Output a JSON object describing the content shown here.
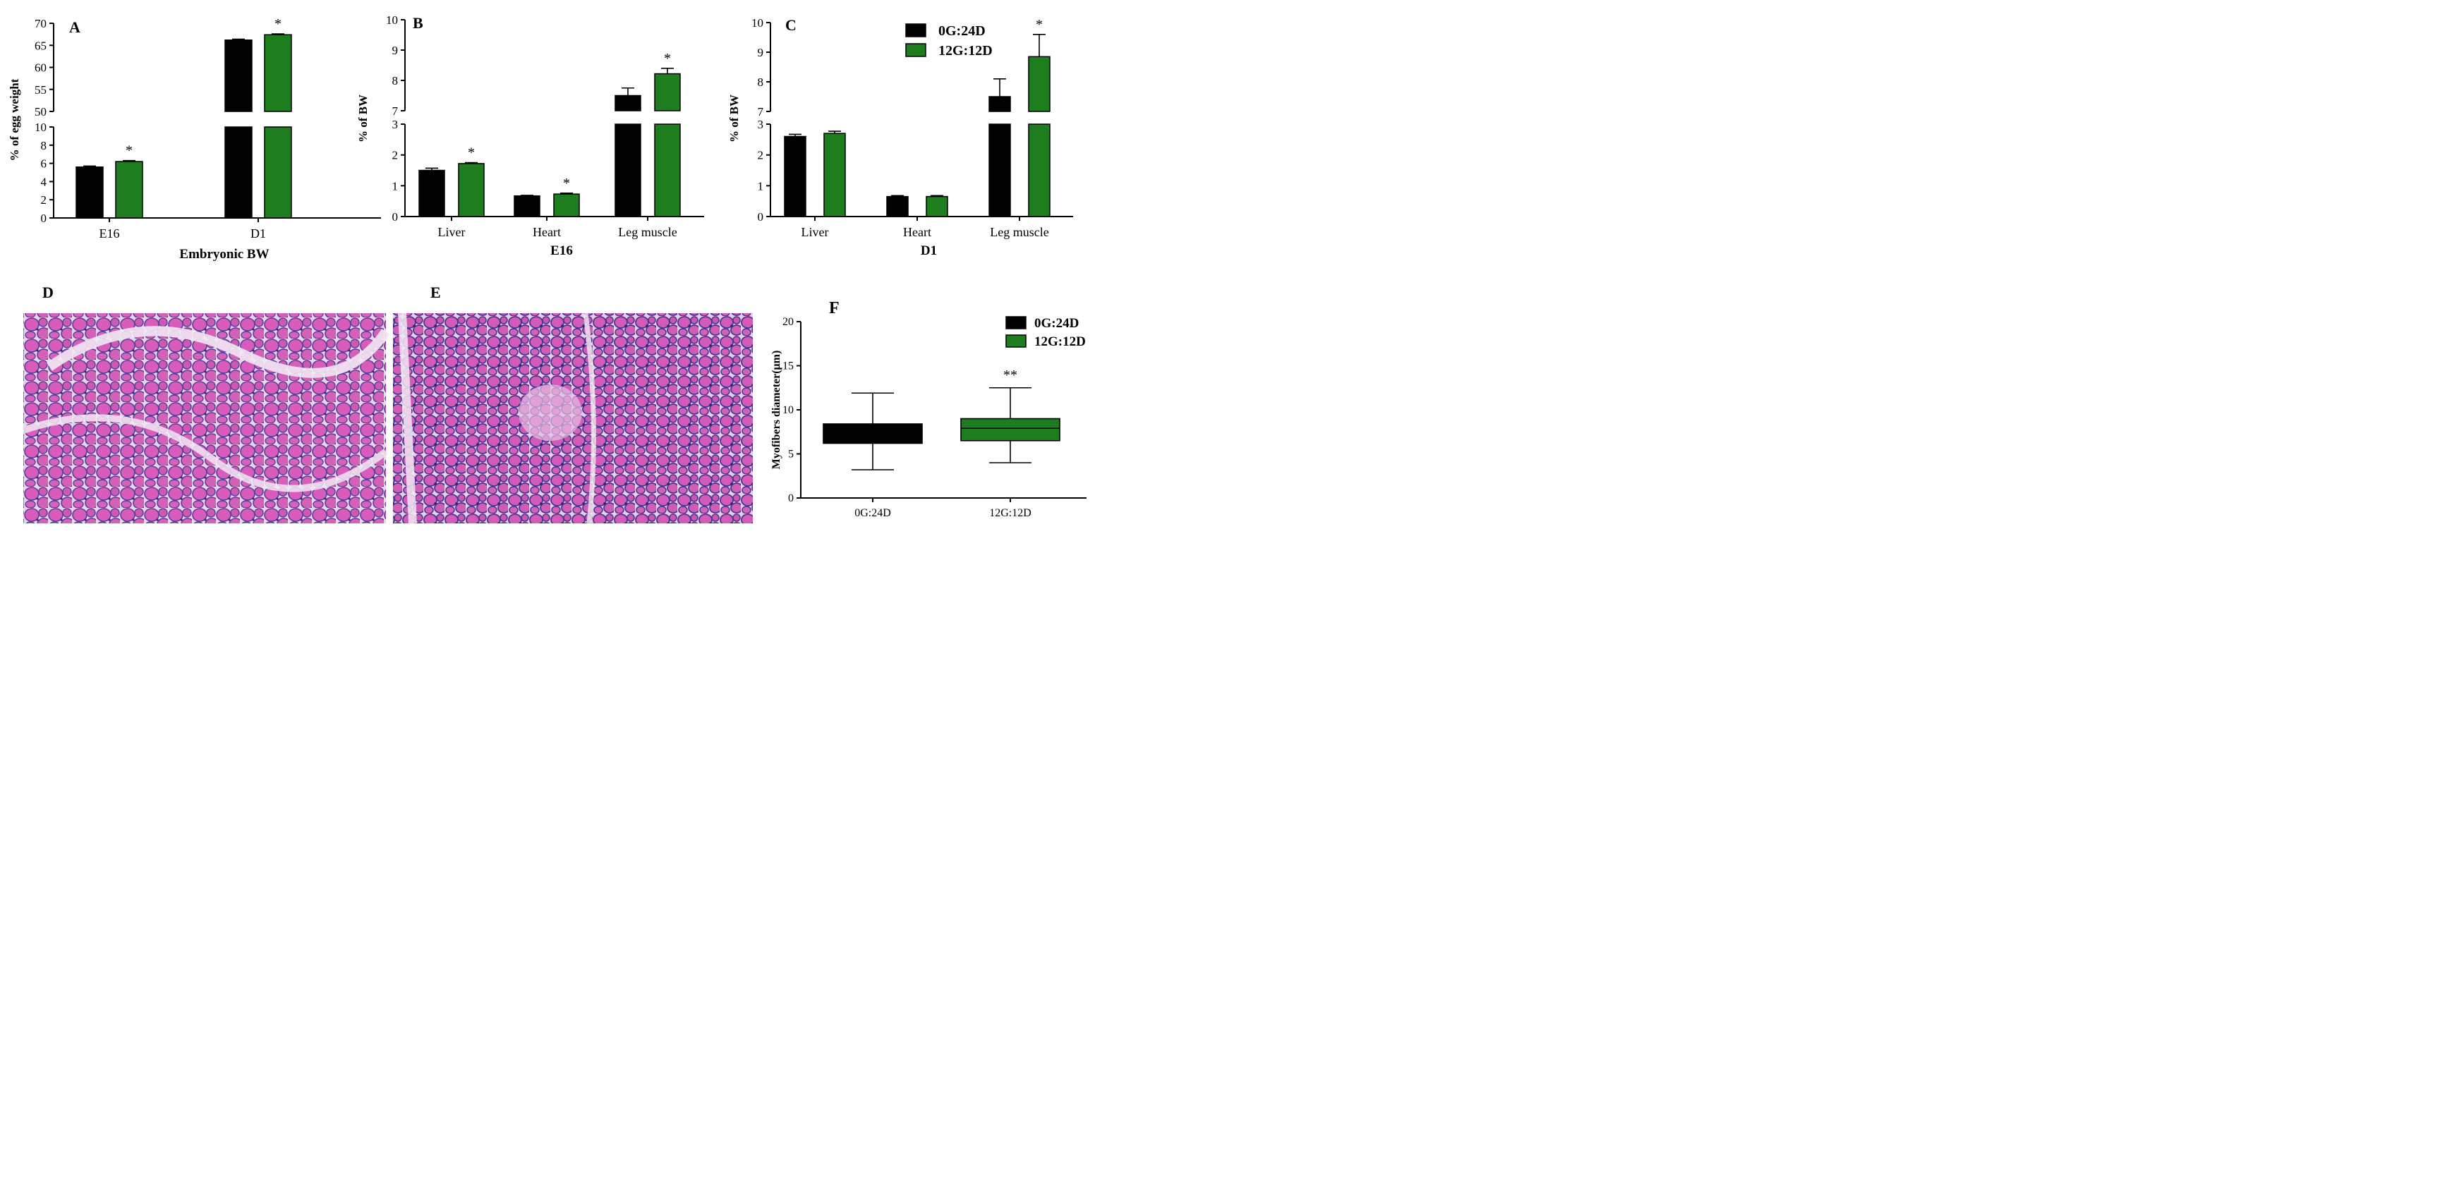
{
  "colors": {
    "black": "#000000",
    "green": "#1e7d1e"
  },
  "chart_data": [
    {
      "panel": "A",
      "type": "bar",
      "broken_axis": true,
      "categories": [
        "E16",
        "D1"
      ],
      "xlabel": "Embryonic BW",
      "ylabel": "% of egg weight",
      "ylim_low": [
        0,
        10
      ],
      "ylim_high": [
        50,
        70
      ],
      "yticks_low": [
        "0",
        "2",
        "4",
        "6",
        "8",
        "10"
      ],
      "yticks_high": [
        "50",
        "55",
        "60",
        "65",
        "70"
      ],
      "series": [
        {
          "name": "0G:24D",
          "values": [
            5.6,
            66.2
          ],
          "errors": [
            0.1,
            0.2
          ]
        },
        {
          "name": "12G:12D",
          "values": [
            6.2,
            67.4
          ],
          "errors": [
            0.1,
            0.2
          ]
        }
      ],
      "significance": [
        "*",
        "*"
      ]
    },
    {
      "panel": "B",
      "type": "bar",
      "broken_axis": true,
      "categories": [
        "Liver",
        "Heart",
        "Leg muscle"
      ],
      "xlabel": "E16",
      "ylabel": "% of BW",
      "ylim_low": [
        0,
        3
      ],
      "ylim_high": [
        7,
        10
      ],
      "yticks_low": [
        "0",
        "1",
        "2",
        "3"
      ],
      "yticks_high": [
        "7",
        "8",
        "9",
        "10"
      ],
      "series": [
        {
          "name": "0G:24D",
          "values": [
            1.5,
            0.67,
            7.5
          ],
          "errors": [
            0.07,
            0.02,
            0.25
          ]
        },
        {
          "name": "12G:12D",
          "values": [
            1.72,
            0.73,
            8.22
          ],
          "errors": [
            0.03,
            0.03,
            0.18
          ]
        }
      ],
      "significance": [
        "*",
        "*",
        "*"
      ]
    },
    {
      "panel": "C",
      "type": "bar",
      "broken_axis": true,
      "categories": [
        "Liver",
        "Heart",
        "Leg muscle"
      ],
      "xlabel": "D1",
      "ylabel": "% of BW",
      "ylim_low": [
        0,
        3
      ],
      "ylim_high": [
        7,
        10
      ],
      "yticks_low": [
        "0",
        "1",
        "2",
        "3"
      ],
      "yticks_high": [
        "7",
        "8",
        "9",
        "10"
      ],
      "series": [
        {
          "name": "0G:24D",
          "values": [
            2.6,
            0.65,
            7.5
          ],
          "errors": [
            0.07,
            0.03,
            0.6
          ]
        },
        {
          "name": "12G:12D",
          "values": [
            2.7,
            0.65,
            8.85
          ],
          "errors": [
            0.07,
            0.03,
            0.75
          ]
        }
      ],
      "significance": [
        "",
        "",
        "*"
      ],
      "legend": [
        "0G:24D",
        "12G:12D"
      ],
      "legend_position": "top-right"
    },
    {
      "panel": "F",
      "type": "boxplot",
      "categories": [
        "0G:24D",
        "12G:12D"
      ],
      "ylabel": "Myofibers diameter(μm)",
      "ylim": [
        0,
        20
      ],
      "yticks": [
        "0",
        "5",
        "10",
        "15",
        "20"
      ],
      "boxes": [
        {
          "name": "0G:24D",
          "min": 3.2,
          "q1": 6.2,
          "median": 7.5,
          "q3": 8.4,
          "max": 11.9
        },
        {
          "name": "12G:12D",
          "min": 4.0,
          "q1": 6.5,
          "median": 7.9,
          "q3": 9.0,
          "max": 12.5
        }
      ],
      "significance": [
        "",
        "**"
      ],
      "legend": [
        "0G:24D",
        "12G:12D"
      ],
      "legend_position": "top-right"
    }
  ],
  "images": [
    {
      "panel": "D",
      "description_icon": "muscle-histology-image"
    },
    {
      "panel": "E",
      "description_icon": "muscle-histology-image"
    }
  ]
}
